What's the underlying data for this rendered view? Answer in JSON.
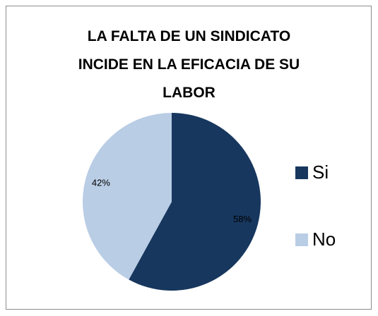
{
  "chart_data": {
    "type": "pie",
    "title": "LA FALTA DE UN SINDICATO\nINCIDE EN LA EFICACIA DE SU\nLABOR",
    "categories": [
      "Si",
      "No"
    ],
    "values": [
      58,
      42
    ],
    "value_labels": [
      "58%",
      "42%"
    ],
    "colors": [
      "#17375e",
      "#b9cde5"
    ],
    "legend": "right"
  }
}
